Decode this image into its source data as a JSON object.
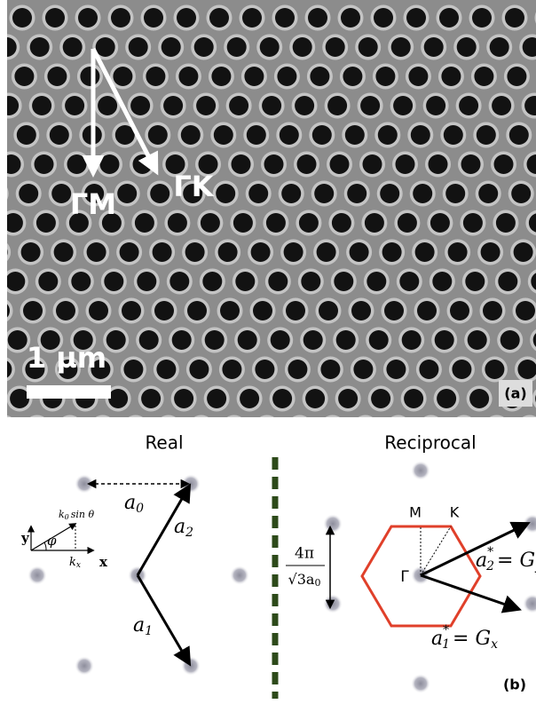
{
  "panel_a": {
    "directions": [
      "ΓM",
      "ΓK"
    ],
    "scale_bar": "1 µm",
    "tag": "(a)"
  },
  "panel_b": {
    "real": {
      "title": "Real",
      "a0": [
        "a",
        "0"
      ],
      "a1": [
        "a",
        "1"
      ],
      "a2": [
        "a",
        "2"
      ],
      "axes": {
        "y": "y",
        "x": "x",
        "k0": [
          "k",
          "0"
        ],
        "sin": "sin θ",
        "phi": "φ",
        "kx": [
          "k",
          "x"
        ]
      }
    },
    "reciprocal": {
      "title": "Reciprocal",
      "M": "M",
      "K": "K",
      "gamma": "Γ",
      "spacing": {
        "numerator": "4π",
        "denominator": [
          "√3a",
          "0"
        ]
      },
      "a2_star": [
        "a",
        "2",
        "*",
        "= G",
        "y"
      ],
      "a1_star": [
        "a",
        "1",
        "*",
        "= G",
        "x"
      ]
    },
    "tag": "(b)"
  }
}
